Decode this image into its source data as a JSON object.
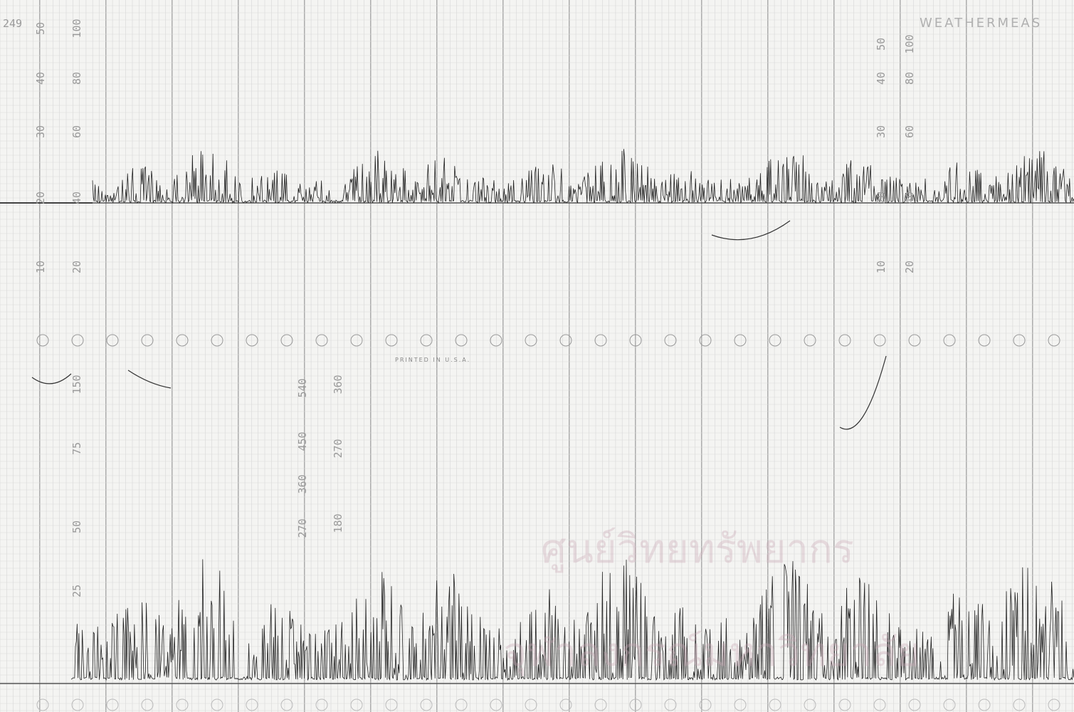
{
  "header": {
    "chart_number": "249",
    "brand": "WEATHERMEAS",
    "imprint": "PRINTED IN U.S.A."
  },
  "scales": {
    "left_outer": [
      "50",
      "40",
      "30",
      "20",
      "10"
    ],
    "left_inner": [
      "100",
      "80",
      "60",
      "40",
      "20"
    ],
    "right_outer": [
      "50",
      "40",
      "30",
      "20",
      "10"
    ],
    "right_inner": [
      "100",
      "80",
      "60",
      "40",
      "20"
    ],
    "lower_left": [
      "150",
      "75",
      "50",
      "25"
    ],
    "direction_outer": [
      "540",
      "450",
      "360",
      "270"
    ],
    "direction_inner": [
      "360",
      "270",
      "180"
    ]
  },
  "watermark": {
    "line1": "ศูนย์วิทยทรัพยากร",
    "line2": "จุฬาลงกรณ์มหาวิทยาลัย"
  }
}
